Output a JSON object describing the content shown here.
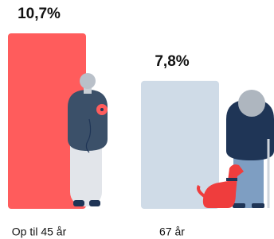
{
  "chart_data": {
    "type": "bar",
    "categories": [
      "Op til 45 år",
      "67 år"
    ],
    "values": [
      10.7,
      7.8
    ],
    "value_labels": [
      "10,7%",
      "7,8%"
    ],
    "colors": [
      "#ff5c5c",
      "#cfdbe7"
    ]
  }
}
